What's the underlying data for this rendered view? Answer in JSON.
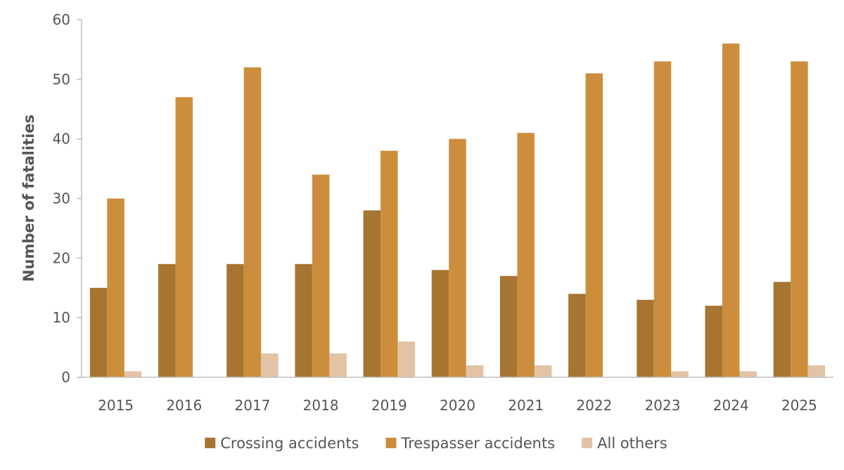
{
  "chart_data": {
    "type": "bar",
    "title": "",
    "xlabel": "",
    "ylabel": "Number of fatalities",
    "ylim": [
      0,
      60
    ],
    "yticks": [
      0,
      10,
      20,
      30,
      40,
      50,
      60
    ],
    "grid": false,
    "legend_position": "bottom",
    "categories": [
      "2015",
      "2016",
      "2017",
      "2018",
      "2019",
      "2020",
      "2021",
      "2022",
      "2023",
      "2024",
      "2025"
    ],
    "series": [
      {
        "name": "Crossing accidents",
        "color": "#a67531",
        "values": [
          15,
          19,
          19,
          19,
          28,
          18,
          17,
          14,
          13,
          12,
          16
        ]
      },
      {
        "name": "Trespasser accidents",
        "color": "#cc8e3d",
        "values": [
          30,
          47,
          52,
          34,
          38,
          40,
          41,
          51,
          53,
          56,
          53
        ]
      },
      {
        "name": "All others",
        "color": "#e3c3a6",
        "values": [
          1,
          0,
          4,
          4,
          6,
          2,
          2,
          0,
          1,
          1,
          2
        ]
      }
    ]
  }
}
